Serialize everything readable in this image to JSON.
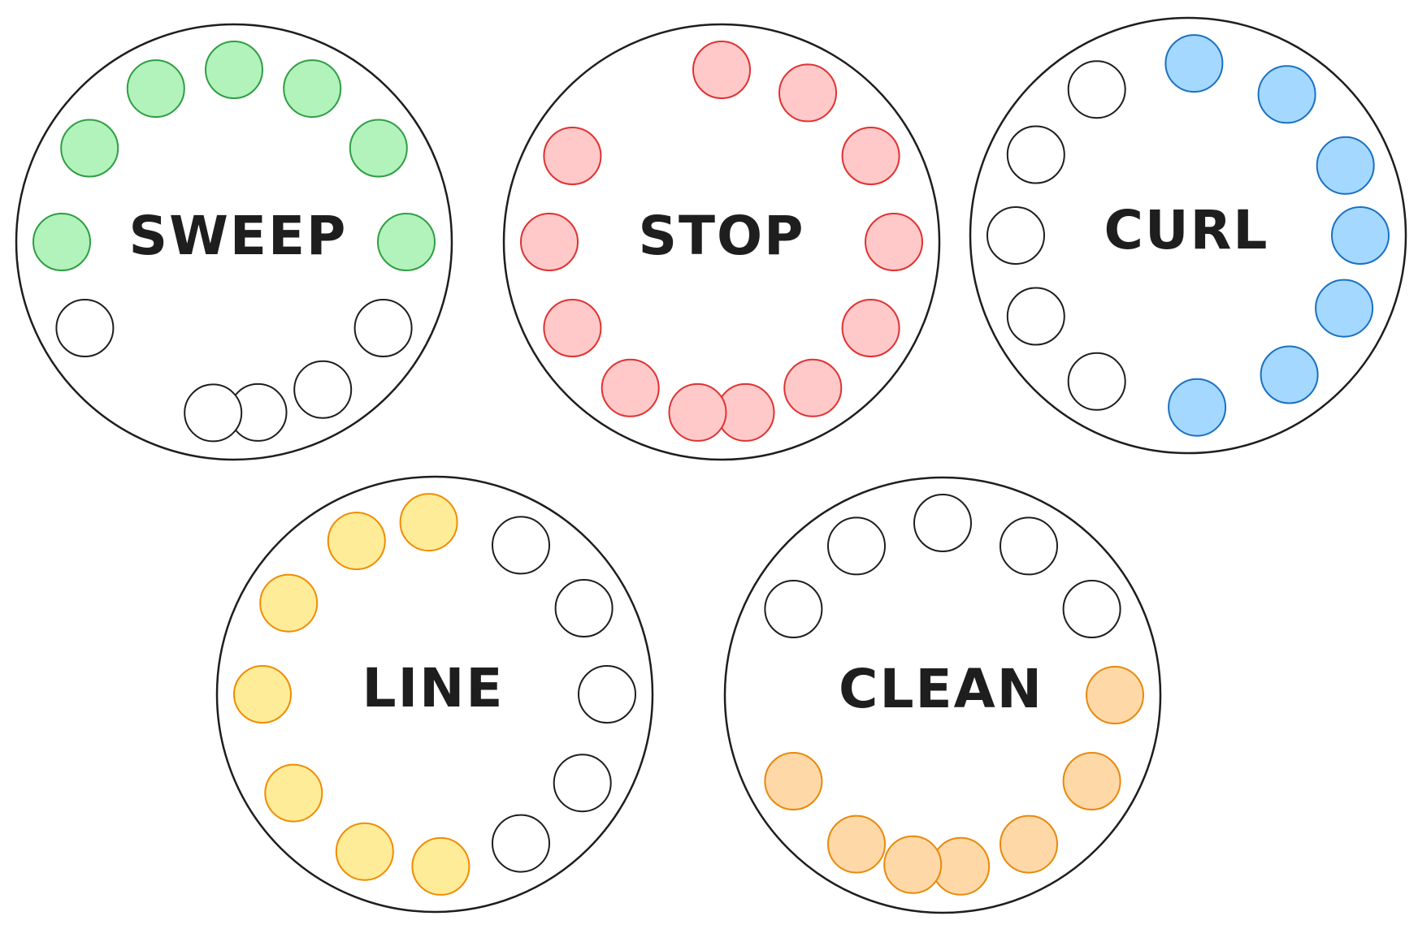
{
  "colors": {
    "outline": "#1e1e1e",
    "empty_fill": "#ffffff",
    "empty_stroke": "#1e1e1e",
    "green": {
      "fill": "#b2f2bb",
      "stroke": "#2f9e44"
    },
    "red": {
      "fill": "#ffc9c9",
      "stroke": "#e03131"
    },
    "blue": {
      "fill": "#a5d8ff",
      "stroke": "#1971c2"
    },
    "yellow": {
      "fill": "#ffec99",
      "stroke": "#f08c00"
    },
    "orange": {
      "fill": "#ffd8a8",
      "stroke": "#e8890c"
    }
  },
  "dials": [
    {
      "id": "sweep",
      "label": "SWEEP",
      "color": "green",
      "dots": [
        true,
        true,
        true,
        true,
        true,
        true,
        true,
        false,
        false,
        false,
        false,
        false
      ]
    },
    {
      "id": "stop",
      "label": "STOP",
      "color": "red",
      "dots": [
        true,
        true,
        true,
        true,
        true,
        true,
        true,
        true,
        true,
        true,
        true,
        true
      ]
    },
    {
      "id": "curl",
      "label": "CURL",
      "color": "blue",
      "dots": [
        true,
        true,
        true,
        true,
        true,
        true,
        true,
        false,
        false,
        false,
        false,
        false
      ]
    },
    {
      "id": "line",
      "label": "LINE",
      "color": "yellow",
      "dots": [
        true,
        true,
        true,
        true,
        true,
        true,
        true,
        false,
        false,
        false,
        false,
        false
      ]
    },
    {
      "id": "clean",
      "label": "CLEAN",
      "color": "orange",
      "dots": [
        true,
        true,
        true,
        true,
        true,
        true,
        true,
        false,
        false,
        false,
        false,
        false
      ]
    }
  ]
}
